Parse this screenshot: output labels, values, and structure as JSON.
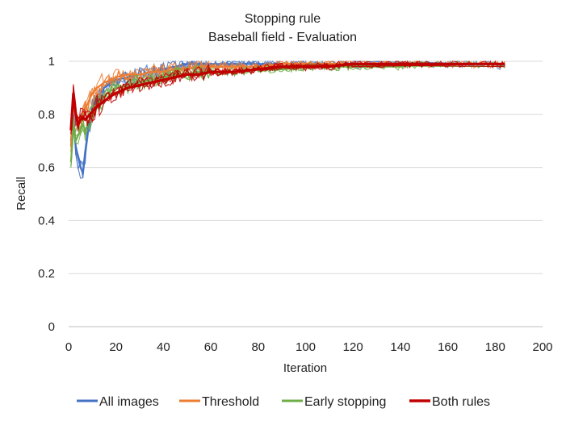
{
  "chart_data": {
    "type": "line",
    "title": "Stopping rule",
    "subtitle": "Baseball field - Evaluation",
    "xlabel": "Iteration",
    "ylabel": "Recall",
    "xlim": [
      0,
      200
    ],
    "ylim": [
      0,
      1
    ],
    "x_ticks": [
      "0",
      "20",
      "40",
      "60",
      "80",
      "100",
      "120",
      "140",
      "160",
      "180",
      "200"
    ],
    "y_ticks": [
      "0",
      "0.2",
      "0.4",
      "0.6",
      "0.8",
      "1"
    ],
    "grid": "horizontal",
    "legend_position": "bottom",
    "series": [
      {
        "name": "All images",
        "color": "#4472c4",
        "mean": {
          "x": [
            1,
            2,
            3,
            4,
            5,
            6,
            7,
            8,
            9,
            10,
            12,
            15,
            18,
            20,
            25,
            30,
            35,
            40,
            45,
            50,
            55,
            60,
            70,
            80,
            90,
            100,
            110,
            120,
            130,
            140,
            150,
            160,
            170,
            180,
            184
          ],
          "y": [
            0.7,
            0.8,
            0.68,
            0.64,
            0.6,
            0.58,
            0.66,
            0.73,
            0.78,
            0.82,
            0.86,
            0.9,
            0.92,
            0.93,
            0.94,
            0.95,
            0.96,
            0.97,
            0.98,
            0.99,
            0.99,
            0.99,
            0.99,
            0.99,
            0.99,
            0.99,
            0.99,
            0.99,
            0.99,
            0.99,
            0.99,
            0.99,
            0.99,
            0.99,
            0.98
          ]
        }
      },
      {
        "name": "Threshold",
        "color": "#ed7d31",
        "mean": {
          "x": [
            1,
            2,
            3,
            4,
            5,
            6,
            7,
            8,
            9,
            10,
            12,
            15,
            18,
            20,
            25,
            30,
            35,
            40,
            45,
            50,
            55,
            60,
            70,
            80,
            90,
            100,
            110,
            120,
            130,
            140,
            150,
            160,
            170,
            180,
            184
          ],
          "y": [
            0.68,
            0.85,
            0.8,
            0.76,
            0.78,
            0.8,
            0.82,
            0.84,
            0.86,
            0.88,
            0.9,
            0.92,
            0.93,
            0.94,
            0.95,
            0.95,
            0.96,
            0.96,
            0.97,
            0.97,
            0.98,
            0.98,
            0.98,
            0.98,
            0.99,
            0.99,
            0.99,
            0.99,
            0.99,
            0.99,
            0.99,
            0.99,
            0.99,
            0.99,
            0.99
          ]
        }
      },
      {
        "name": "Early stopping",
        "color": "#70ad47",
        "mean": {
          "x": [
            1,
            2,
            3,
            4,
            5,
            6,
            7,
            8,
            9,
            10,
            12,
            15,
            18,
            20,
            25,
            30,
            35,
            40,
            45,
            50,
            55,
            60,
            70,
            80,
            90,
            100,
            110,
            120,
            130,
            140,
            150,
            160,
            170,
            180,
            184
          ],
          "y": [
            0.62,
            0.75,
            0.7,
            0.72,
            0.74,
            0.76,
            0.74,
            0.76,
            0.78,
            0.8,
            0.84,
            0.87,
            0.89,
            0.9,
            0.91,
            0.92,
            0.93,
            0.94,
            0.95,
            0.95,
            0.96,
            0.96,
            0.96,
            0.97,
            0.97,
            0.98,
            0.98,
            0.98,
            0.98,
            0.98,
            0.99,
            0.99,
            0.99,
            0.99,
            0.99
          ]
        }
      },
      {
        "name": "Both rules",
        "color": "#c00000",
        "mean": {
          "x": [
            1,
            2,
            3,
            4,
            5,
            6,
            7,
            8,
            9,
            10,
            12,
            15,
            18,
            20,
            25,
            30,
            35,
            40,
            45,
            50,
            55,
            60,
            70,
            80,
            90,
            100,
            110,
            120,
            130,
            140,
            150,
            160,
            170,
            180,
            184
          ],
          "y": [
            0.74,
            0.88,
            0.8,
            0.76,
            0.78,
            0.79,
            0.78,
            0.79,
            0.8,
            0.81,
            0.83,
            0.85,
            0.87,
            0.88,
            0.9,
            0.91,
            0.92,
            0.93,
            0.94,
            0.95,
            0.95,
            0.96,
            0.96,
            0.97,
            0.98,
            0.98,
            0.98,
            0.99,
            0.99,
            0.99,
            0.99,
            0.99,
            0.99,
            0.99,
            0.99
          ]
        }
      }
    ]
  }
}
